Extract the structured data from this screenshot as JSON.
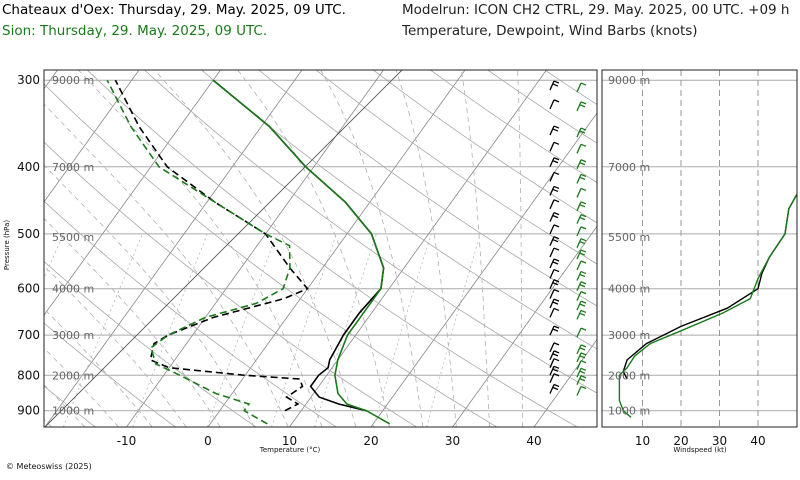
{
  "header": {
    "station_title": "Chateaux d'Oex: Thursday, 29. May. 2025, 09 UTC.",
    "compare_title": "Sion: Thursday, 29. May. 2025, 09 UTC.",
    "model_run": "Modelrun: ICON CH2 CTRL, 29. May. 2025, 00 UTC. +09 h",
    "content": "Temperature, Dewpoint, Wind Barbs (knots)"
  },
  "footer": {
    "copyright": "© Meteoswiss (2025)"
  },
  "colors": {
    "station": "#000000",
    "compare": "#1a7a1a",
    "grid": "#9a9a9a"
  },
  "chart_data": [
    {
      "type": "line",
      "subtype": "skew-T log-P",
      "xlabel": "Temperature (°C)",
      "ylabel": "Pressure (hPa)",
      "xlim": [
        -20,
        47
      ],
      "ylim": [
        950,
        290
      ],
      "y_scale": "log",
      "x_ticks": [
        "-10",
        "0",
        "10",
        "20",
        "30",
        "40"
      ],
      "y_ticks": [
        "300",
        "400",
        "500",
        "600",
        "700",
        "800",
        "900"
      ],
      "altitude_labels": [
        "9000 m",
        "7000 m",
        "5500 m",
        "4000 m",
        "3000 m",
        "2000 m",
        "1000 m"
      ],
      "grid": true,
      "series": [
        {
          "name": "Chateaux d'Oex",
          "color": "#000000",
          "temperature": [
            [
              900,
              18
            ],
            [
              880,
              14
            ],
            [
              860,
              11
            ],
            [
              830,
              9
            ],
            [
              800,
              9
            ],
            [
              780,
              9.5
            ],
            [
              760,
              9
            ],
            [
              700,
              8.5
            ],
            [
              650,
              8.5
            ],
            [
              600,
              9
            ],
            [
              560,
              7.5
            ],
            [
              500,
              3
            ],
            [
              450,
              -3
            ],
            [
              400,
              -11
            ],
            [
              350,
              -19
            ],
            [
              300,
              -30
            ]
          ],
          "dewpoint": [
            [
              900,
              8
            ],
            [
              880,
              9
            ],
            [
              860,
              7
            ],
            [
              830,
              8
            ],
            [
              810,
              7
            ],
            [
              800,
              0
            ],
            [
              780,
              -10
            ],
            [
              760,
              -13
            ],
            [
              720,
              -14
            ],
            [
              700,
              -13
            ],
            [
              660,
              -9
            ],
            [
              620,
              -2
            ],
            [
              600,
              0
            ],
            [
              560,
              -4
            ],
            [
              500,
              -10
            ],
            [
              450,
              -19
            ],
            [
              400,
              -28
            ],
            [
              350,
              -35
            ],
            [
              300,
              -42
            ]
          ]
        },
        {
          "name": "Sion",
          "color": "#1a7a1a",
          "temperature": [
            [
              940,
              22
            ],
            [
              900,
              18
            ],
            [
              880,
              15
            ],
            [
              850,
              13
            ],
            [
              800,
              11
            ],
            [
              760,
              10
            ],
            [
              700,
              9
            ],
            [
              650,
              9
            ],
            [
              600,
              9
            ],
            [
              560,
              7.5
            ],
            [
              500,
              3
            ],
            [
              450,
              -3
            ],
            [
              400,
              -11
            ],
            [
              350,
              -19
            ],
            [
              300,
              -30
            ]
          ],
          "dewpoint": [
            [
              940,
              7
            ],
            [
              920,
              5
            ],
            [
              900,
              3
            ],
            [
              880,
              3
            ],
            [
              850,
              -2
            ],
            [
              800,
              -8
            ],
            [
              770,
              -12
            ],
            [
              730,
              -14
            ],
            [
              700,
              -13
            ],
            [
              660,
              -10
            ],
            [
              630,
              -5
            ],
            [
              600,
              -3
            ],
            [
              560,
              -4
            ],
            [
              520,
              -6
            ],
            [
              500,
              -10
            ],
            [
              450,
              -19
            ],
            [
              400,
              -29
            ],
            [
              350,
              -36
            ],
            [
              300,
              -43
            ]
          ]
        }
      ]
    },
    {
      "type": "line",
      "subtype": "wind-profile",
      "xlabel": "Windspeed (kt)",
      "xlim": [
        0,
        47
      ],
      "ylim": [
        950,
        290
      ],
      "x_ticks": [
        "10",
        "20",
        "30",
        "40"
      ],
      "altitude_labels": [
        "9000 m",
        "7000 m",
        "5500 m",
        "4000 m",
        "3000 m",
        "2000 m",
        "1000 m"
      ],
      "grid": true,
      "series": [
        {
          "name": "Chateaux d'Oex",
          "color": "#000000",
          "values": [
            [
              810,
              6
            ],
            [
              790,
              5
            ],
            [
              760,
              6
            ],
            [
              720,
              11
            ],
            [
              680,
              20
            ],
            [
              640,
              32
            ],
            [
              600,
              40
            ],
            [
              570,
              41
            ],
            [
              540,
              43
            ],
            [
              500,
              47
            ],
            [
              460,
              48
            ],
            [
              420,
              52
            ],
            [
              380,
              58
            ]
          ]
        },
        {
          "name": "Sion",
          "color": "#1a7a1a",
          "values": [
            [
              920,
              7
            ],
            [
              900,
              5
            ],
            [
              870,
              4
            ],
            [
              830,
              4
            ],
            [
              800,
              4
            ],
            [
              780,
              6
            ],
            [
              750,
              8
            ],
            [
              720,
              12
            ],
            [
              690,
              20
            ],
            [
              650,
              31
            ],
            [
              620,
              38
            ],
            [
              580,
              40
            ],
            [
              540,
              43
            ],
            [
              500,
              47
            ],
            [
              460,
              48
            ],
            [
              420,
              52
            ],
            [
              380,
              58
            ]
          ]
        }
      ]
    }
  ]
}
